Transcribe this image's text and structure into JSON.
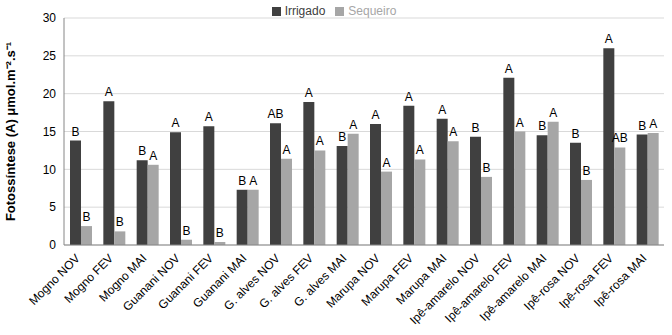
{
  "chart_data": {
    "type": "bar",
    "y_label": "Fotossíntese (A) μmol.m⁻².s⁻¹",
    "categories": [
      "Mogno NOV",
      "Mogno FEV",
      "Mogno MAI",
      "Guanani NOV",
      "Guanani FEV",
      "Guanani MAI",
      "G. alves NOV",
      "G. alves FEV",
      "G. alves MAI",
      "Marupa NOV",
      "Marupa FEV",
      "Marupa MAI",
      "Ipê-amarelo NOV",
      "Ipê-amarelo FEV",
      "Ipê-amarelo MAI",
      "Ipê-rosa NOV",
      "Ipê-rosa FEV",
      "Ipê-rosa MAI"
    ],
    "series": [
      {
        "name": "Irrigado",
        "color": "#404040",
        "values": [
          13.8,
          19,
          11.2,
          14.9,
          15.7,
          7.3,
          16.1,
          18.9,
          13.1,
          16,
          18.4,
          16.7,
          14.3,
          22.1,
          14.5,
          13.5,
          26,
          14.6
        ],
        "letters": [
          "B",
          "A",
          "B",
          "A",
          "A",
          "B",
          "AB",
          "A",
          "B",
          "A",
          "A",
          "A",
          "B",
          "A",
          "B",
          "B",
          "A",
          "B"
        ]
      },
      {
        "name": "Sequeiro",
        "color": "#a6a6a6",
        "values": [
          2.5,
          1.8,
          10.6,
          0.7,
          0.4,
          7.3,
          11.4,
          12.5,
          14.7,
          9.7,
          11.3,
          13.7,
          9,
          15,
          16.3,
          8.6,
          12.9,
          14.8
        ],
        "letters": [
          "B",
          "B",
          "A",
          "B",
          "B",
          "A",
          "A",
          "A",
          "A",
          "A",
          "A",
          "A",
          "B",
          "A",
          "A",
          "B",
          "AB",
          "A"
        ]
      }
    ],
    "ylim": [
      0,
      30
    ],
    "yticks": [
      0,
      5,
      10,
      15,
      20,
      25,
      30
    ],
    "grid": true,
    "legend": "top"
  }
}
